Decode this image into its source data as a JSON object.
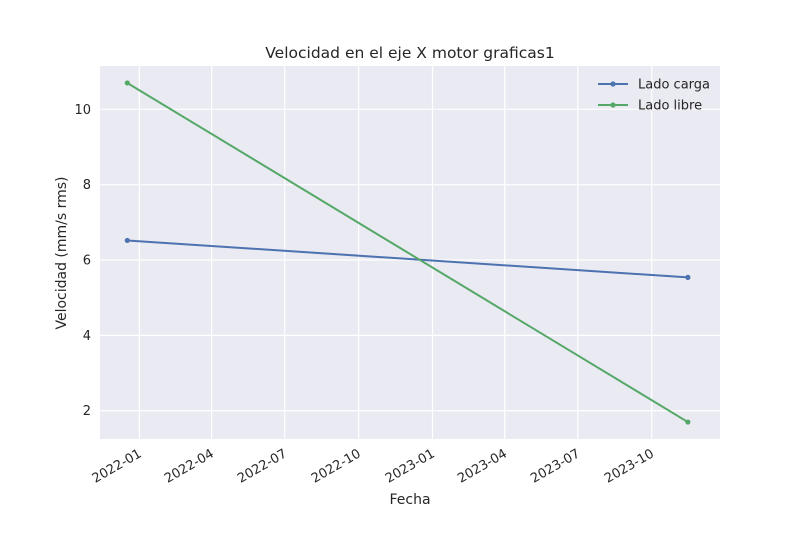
{
  "chart_data": {
    "type": "line",
    "title": "Velocidad en el eje X motor graficas1",
    "xlabel": "Fecha",
    "ylabel": "Velocidad (mm/s rms)",
    "x_ticks": [
      "2022-01",
      "2022-04",
      "2022-07",
      "2022-10",
      "2023-01",
      "2023-04",
      "2023-07",
      "2023-10"
    ],
    "y_ticks": [
      2,
      4,
      6,
      8,
      10
    ],
    "xlim": [
      "2021-11-13",
      "2023-12-25"
    ],
    "ylim": [
      1.25,
      11.15
    ],
    "grid": true,
    "legend_position": "top-right",
    "series": [
      {
        "name": "Lado carga",
        "color": "#4c72b0",
        "x": [
          "2021-12-17",
          "2023-11-15"
        ],
        "values": [
          6.52,
          5.54
        ]
      },
      {
        "name": "Lado libre",
        "color": "#55a868",
        "x": [
          "2021-12-17",
          "2023-11-15"
        ],
        "values": [
          10.7,
          1.7
        ]
      }
    ]
  }
}
